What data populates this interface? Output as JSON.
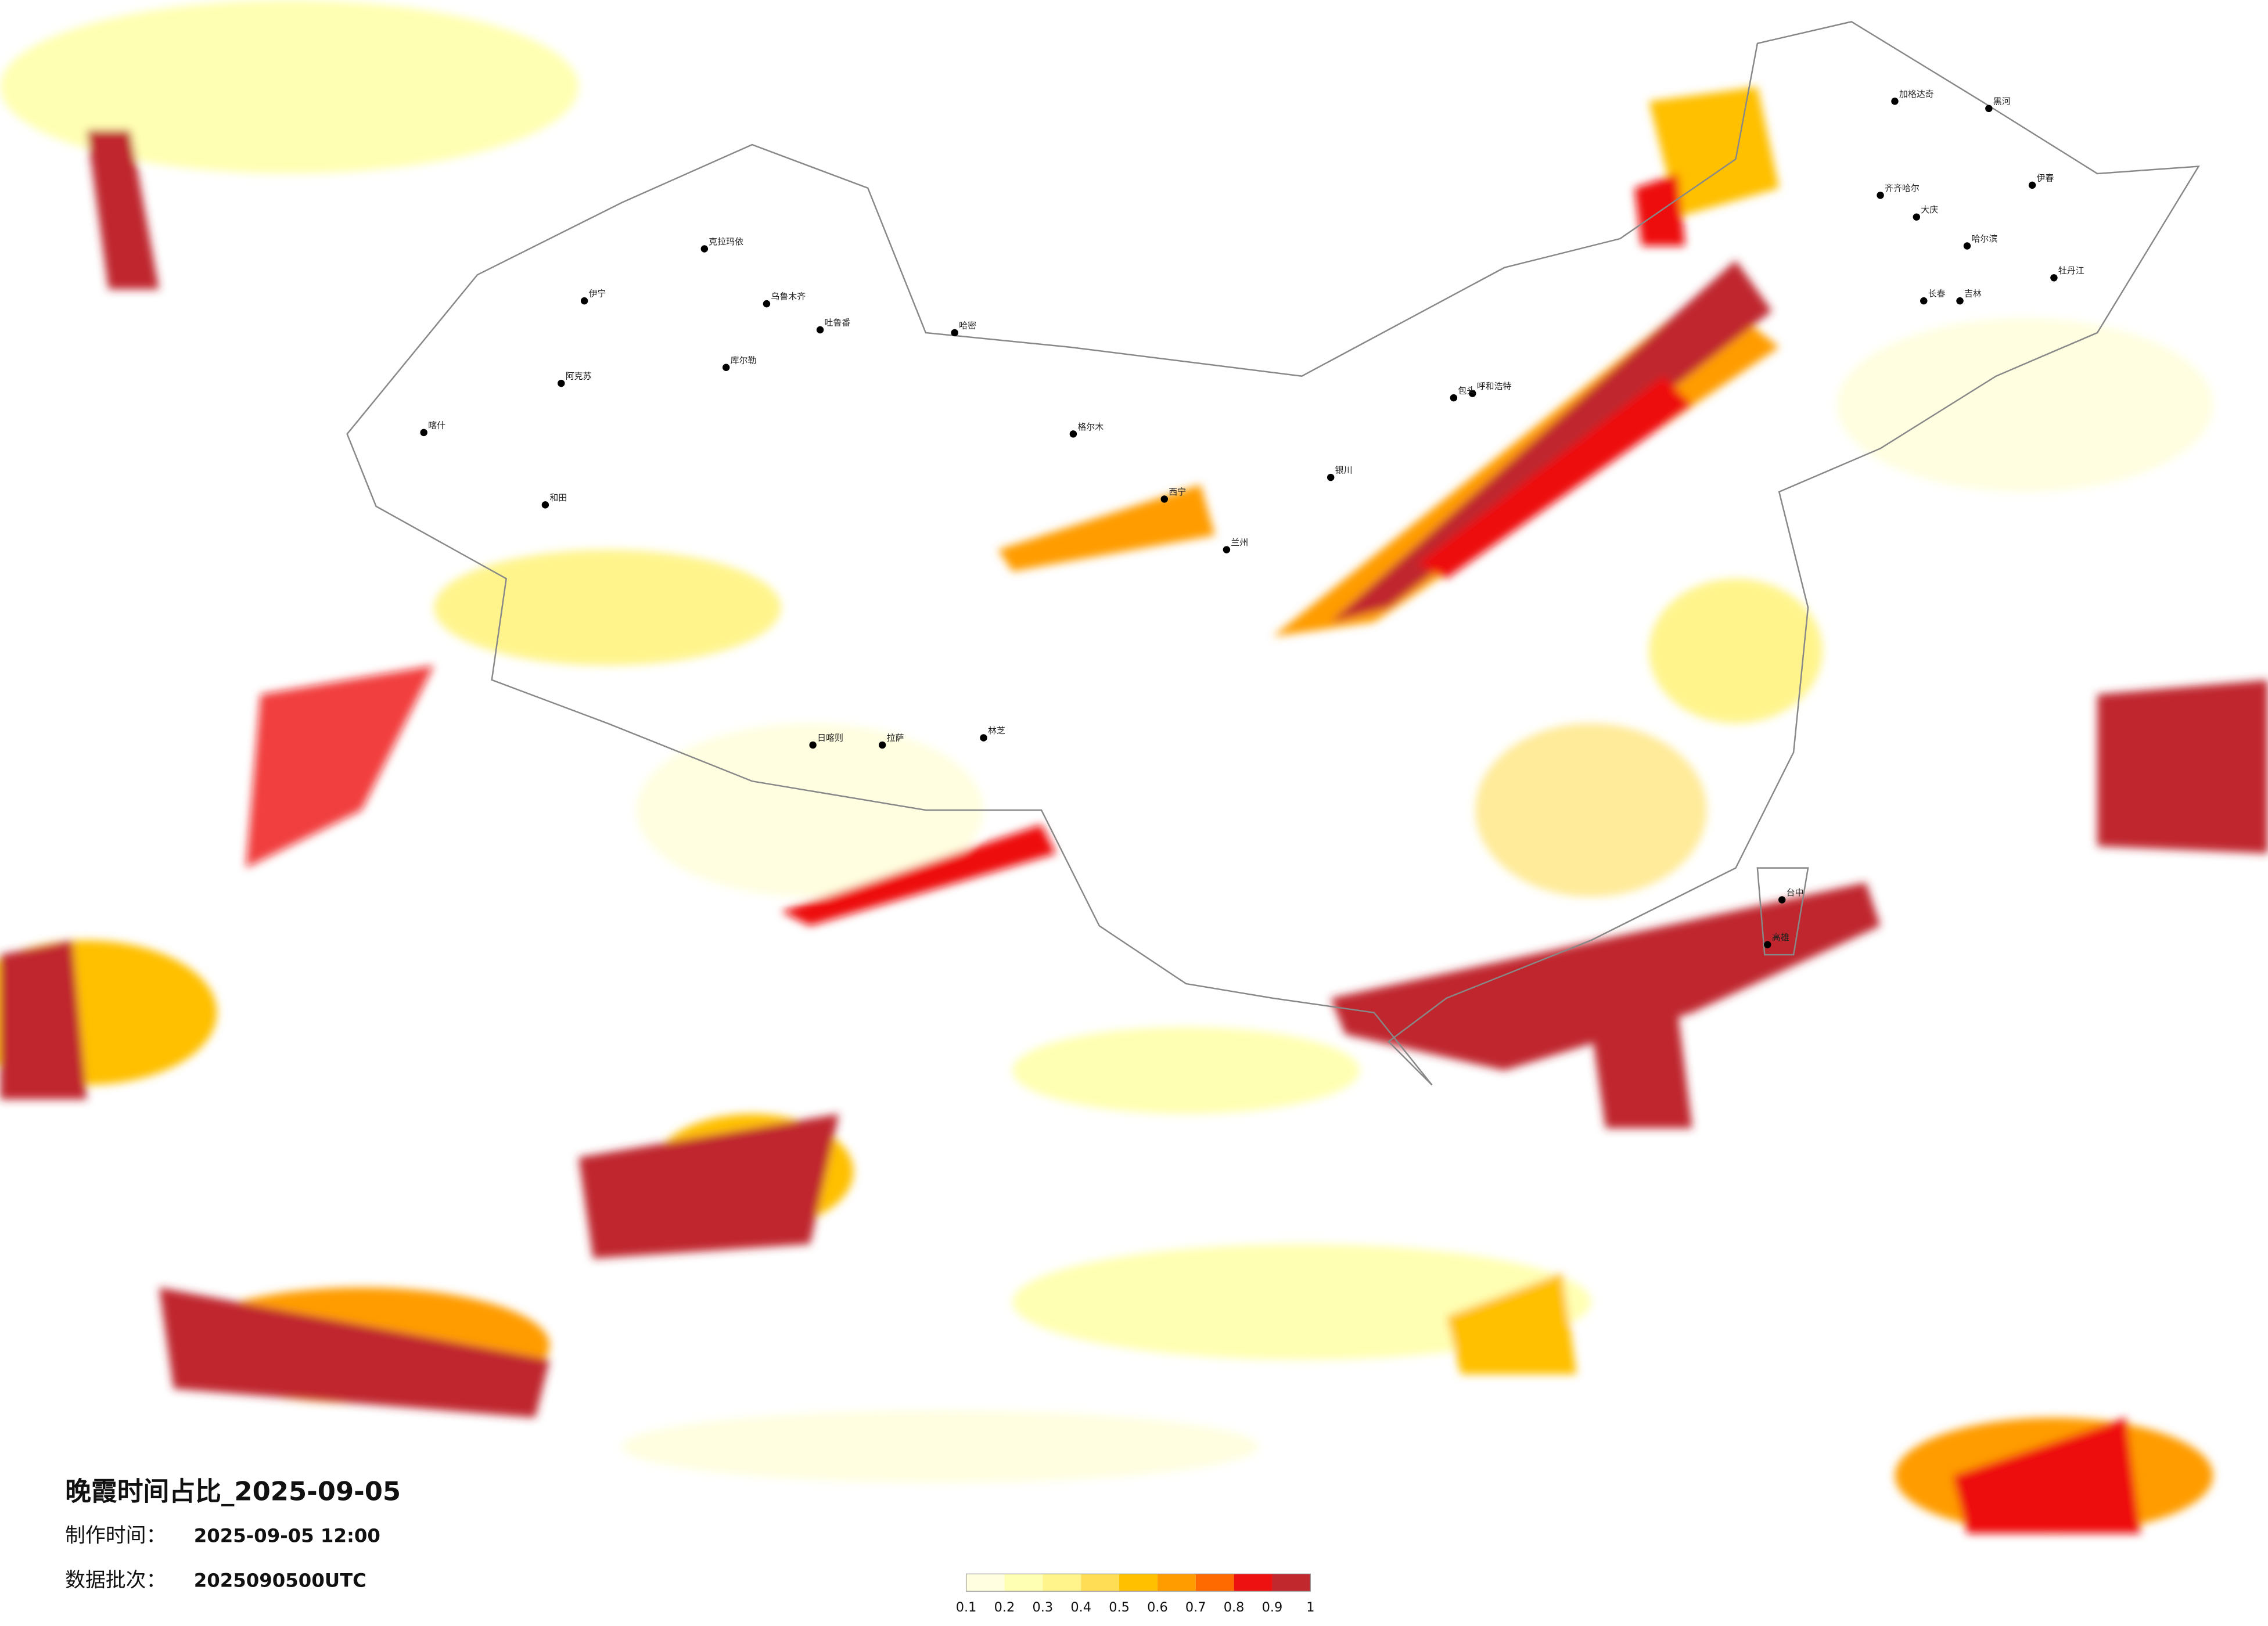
{
  "title": "晚霞时间占比_2025-09-05",
  "made_label": "制作时间：",
  "made_time": "2025-09-05 12:00",
  "batch_label": "数据批次：",
  "batch": "2025090500UTC",
  "legend": {
    "ticks": [
      0.1,
      0.2,
      0.3,
      0.4,
      0.5,
      0.6,
      0.7,
      0.8,
      0.9,
      1
    ],
    "colors": [
      "#fffee0",
      "#ffffb3",
      "#fff48c",
      "#ffdd55",
      "#ffc000",
      "#ff9c00",
      "#ff6a00",
      "#ee1111",
      "#c0282e"
    ]
  },
  "cities": [
    "克拉玛依",
    "乌鲁木齐",
    "伊宁",
    "阿克苏",
    "和田",
    "喀什",
    "吐鲁番",
    "哈密",
    "库尔勒",
    "拉萨",
    "日喀则",
    "林芝",
    "格尔木",
    "西宁",
    "兰州",
    "银川",
    "呼和浩特",
    "包头",
    "哈尔滨",
    "长春",
    "吉林",
    "齐齐哈尔",
    "大庆",
    "伊春",
    "牡丹江",
    "加格达奇",
    "黑河",
    "台中",
    "高雄"
  ]
}
